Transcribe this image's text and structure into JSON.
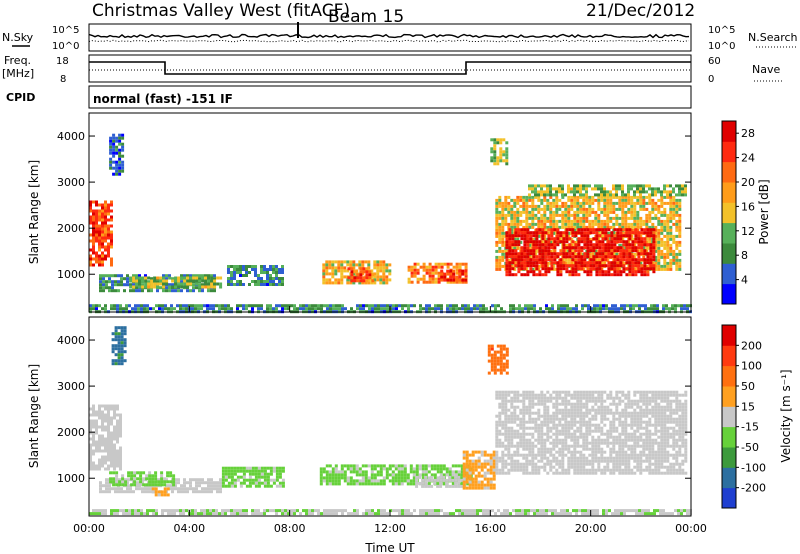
{
  "header": {
    "station": "Christmas Valley West (fitACF)",
    "beam": "Beam 15",
    "date": "21/Dec/2012"
  },
  "panels": {
    "nsky": {
      "left_label": "N.Sky",
      "right_label": "N.Search",
      "ticks_left": [
        "10^5",
        "10^0"
      ],
      "ticks_right": [
        "10^5",
        "10^0"
      ]
    },
    "freq": {
      "left_label_1": "Freq.",
      "left_label_2": "[MHz]",
      "right_label": "Nave",
      "ticks_left": [
        "18",
        "8"
      ],
      "ticks_right": [
        "60",
        "0"
      ]
    },
    "cpid": {
      "left_label": "CPID",
      "value": "normal (fast) -151 IF"
    }
  },
  "chart_data": [
    {
      "type": "heatmap",
      "name": "power",
      "ylabel": "Slant Range [km]",
      "yticks": [
        "1000",
        "2000",
        "3000",
        "4000"
      ],
      "ylim": [
        180,
        4500
      ],
      "xlim": [
        0,
        24
      ],
      "colorbar": {
        "label": "Power [dB]",
        "ticks": [
          "4",
          "8",
          "12",
          "16",
          "20",
          "24",
          "28"
        ],
        "range": [
          0,
          30
        ],
        "colors": [
          "#0000ff",
          "#2f5fd2",
          "#3c8a3c",
          "#57b05a",
          "#f3c12a",
          "#ff9c1a",
          "#ff6a12",
          "#ff2a10",
          "#e00000"
        ]
      },
      "regions": [
        {
          "t0": 0.0,
          "t1": 0.9,
          "r0": 1200,
          "r1": 2600,
          "level": 24
        },
        {
          "t0": 0.4,
          "t1": 5.0,
          "r0": 650,
          "r1": 1000,
          "level": 8
        },
        {
          "t0": 1.6,
          "t1": 5.3,
          "r0": 700,
          "r1": 950,
          "level": 12
        },
        {
          "t0": 5.5,
          "t1": 7.7,
          "r0": 750,
          "r1": 1200,
          "level": 8
        },
        {
          "t0": 9.3,
          "t1": 12.0,
          "r0": 800,
          "r1": 1300,
          "level": 16
        },
        {
          "t0": 10.3,
          "t1": 11.3,
          "r0": 850,
          "r1": 1150,
          "level": 24
        },
        {
          "t0": 12.7,
          "t1": 15.0,
          "r0": 800,
          "r1": 1250,
          "level": 20
        },
        {
          "t0": 14.0,
          "t1": 15.0,
          "r0": 850,
          "r1": 1100,
          "level": 26
        },
        {
          "t0": 16.2,
          "t1": 23.6,
          "r0": 1100,
          "r1": 2700,
          "level": 16
        },
        {
          "t0": 16.6,
          "t1": 22.5,
          "r0": 1000,
          "r1": 2000,
          "level": 28
        },
        {
          "t0": 17.5,
          "t1": 23.8,
          "r0": 2700,
          "r1": 2950,
          "level": 12
        },
        {
          "t0": 16.0,
          "t1": 16.6,
          "r0": 3400,
          "r1": 3950,
          "level": 12
        },
        {
          "t0": 0.8,
          "t1": 1.3,
          "r0": 3200,
          "r1": 4050,
          "level": 6
        },
        {
          "t0": 0.0,
          "t1": 24.0,
          "r0": 200,
          "r1": 350,
          "level": 8
        }
      ]
    },
    {
      "type": "heatmap",
      "name": "velocity",
      "ylabel": "Slant Range [km]",
      "xlabel": "Time UT",
      "xticks": [
        "00:00",
        "04:00",
        "08:00",
        "12:00",
        "16:00",
        "20:00",
        "00:00"
      ],
      "yticks": [
        "1000",
        "2000",
        "3000",
        "4000"
      ],
      "ylim": [
        180,
        4500
      ],
      "xlim": [
        0,
        24
      ],
      "colorbar": {
        "label": "Velocity [m s⁻¹]",
        "ticks": [
          "200",
          "100",
          "50",
          "15",
          "-15",
          "-50",
          "-100",
          "-200"
        ],
        "range": [
          -250,
          250
        ],
        "colors": [
          "#1f3fd0",
          "#2c6fa0",
          "#3c9a3c",
          "#66d13a",
          "#c8c8c8",
          "#ffa020",
          "#ff7010",
          "#ff3a10",
          "#e00000"
        ]
      },
      "regions": [
        {
          "t0": 0.0,
          "t1": 1.3,
          "r0": 1200,
          "r1": 2600,
          "v": 0
        },
        {
          "t0": 0.4,
          "t1": 5.2,
          "r0": 700,
          "r1": 1000,
          "v": 0
        },
        {
          "t0": 0.8,
          "t1": 3.4,
          "r0": 850,
          "r1": 1150,
          "v": -40
        },
        {
          "t0": 2.5,
          "t1": 3.2,
          "r0": 620,
          "r1": 800,
          "v": 40
        },
        {
          "t0": 5.3,
          "t1": 7.8,
          "r0": 800,
          "r1": 1250,
          "v": -40
        },
        {
          "t0": 9.2,
          "t1": 15.2,
          "r0": 850,
          "r1": 1300,
          "v": -40
        },
        {
          "t0": 13.0,
          "t1": 15.0,
          "r0": 800,
          "r1": 1050,
          "v": 0
        },
        {
          "t0": 14.9,
          "t1": 16.2,
          "r0": 800,
          "r1": 1600,
          "v": 40
        },
        {
          "t0": 16.2,
          "t1": 23.8,
          "r0": 1100,
          "r1": 2900,
          "v": 0
        },
        {
          "t0": 15.9,
          "t1": 16.7,
          "r0": 3300,
          "r1": 3900,
          "v": 120
        },
        {
          "t0": 0.9,
          "t1": 1.4,
          "r0": 3500,
          "r1": 4300,
          "v": -150
        },
        {
          "t0": 0.0,
          "t1": 24.0,
          "r0": 200,
          "r1": 330,
          "v": -20
        }
      ]
    }
  ]
}
